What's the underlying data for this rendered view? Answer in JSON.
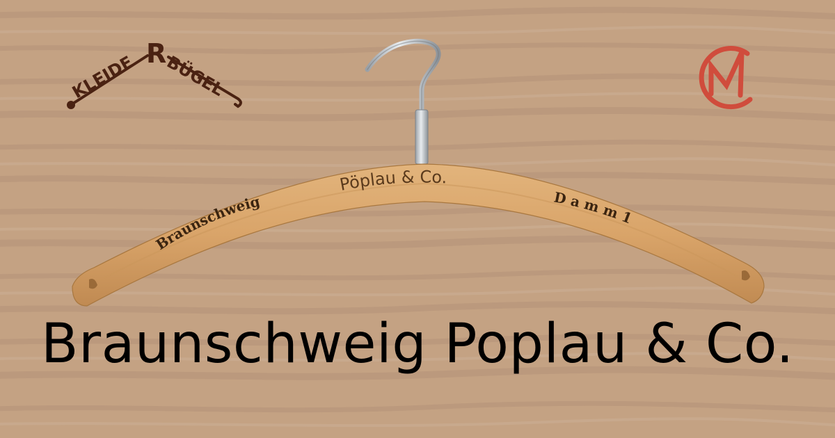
{
  "page": {
    "title": "Braunschweig Poplau & Co."
  },
  "logo_left": {
    "text_left": "KLEIDE",
    "text_right": "BÜGEL",
    "mark": "R",
    "color": "#4a2212"
  },
  "logo_right": {
    "letters": "CM",
    "color": "#d04c3c"
  },
  "hanger": {
    "engraving_center": "Pöplau & Co.",
    "engraving_left": "Braunschweig",
    "engraving_right": "D a m m 1",
    "wood_color": "#d9a469",
    "hook_color": "#9aa0a6"
  },
  "colors": {
    "background": "#c4a283",
    "grain": "#b8957a"
  }
}
